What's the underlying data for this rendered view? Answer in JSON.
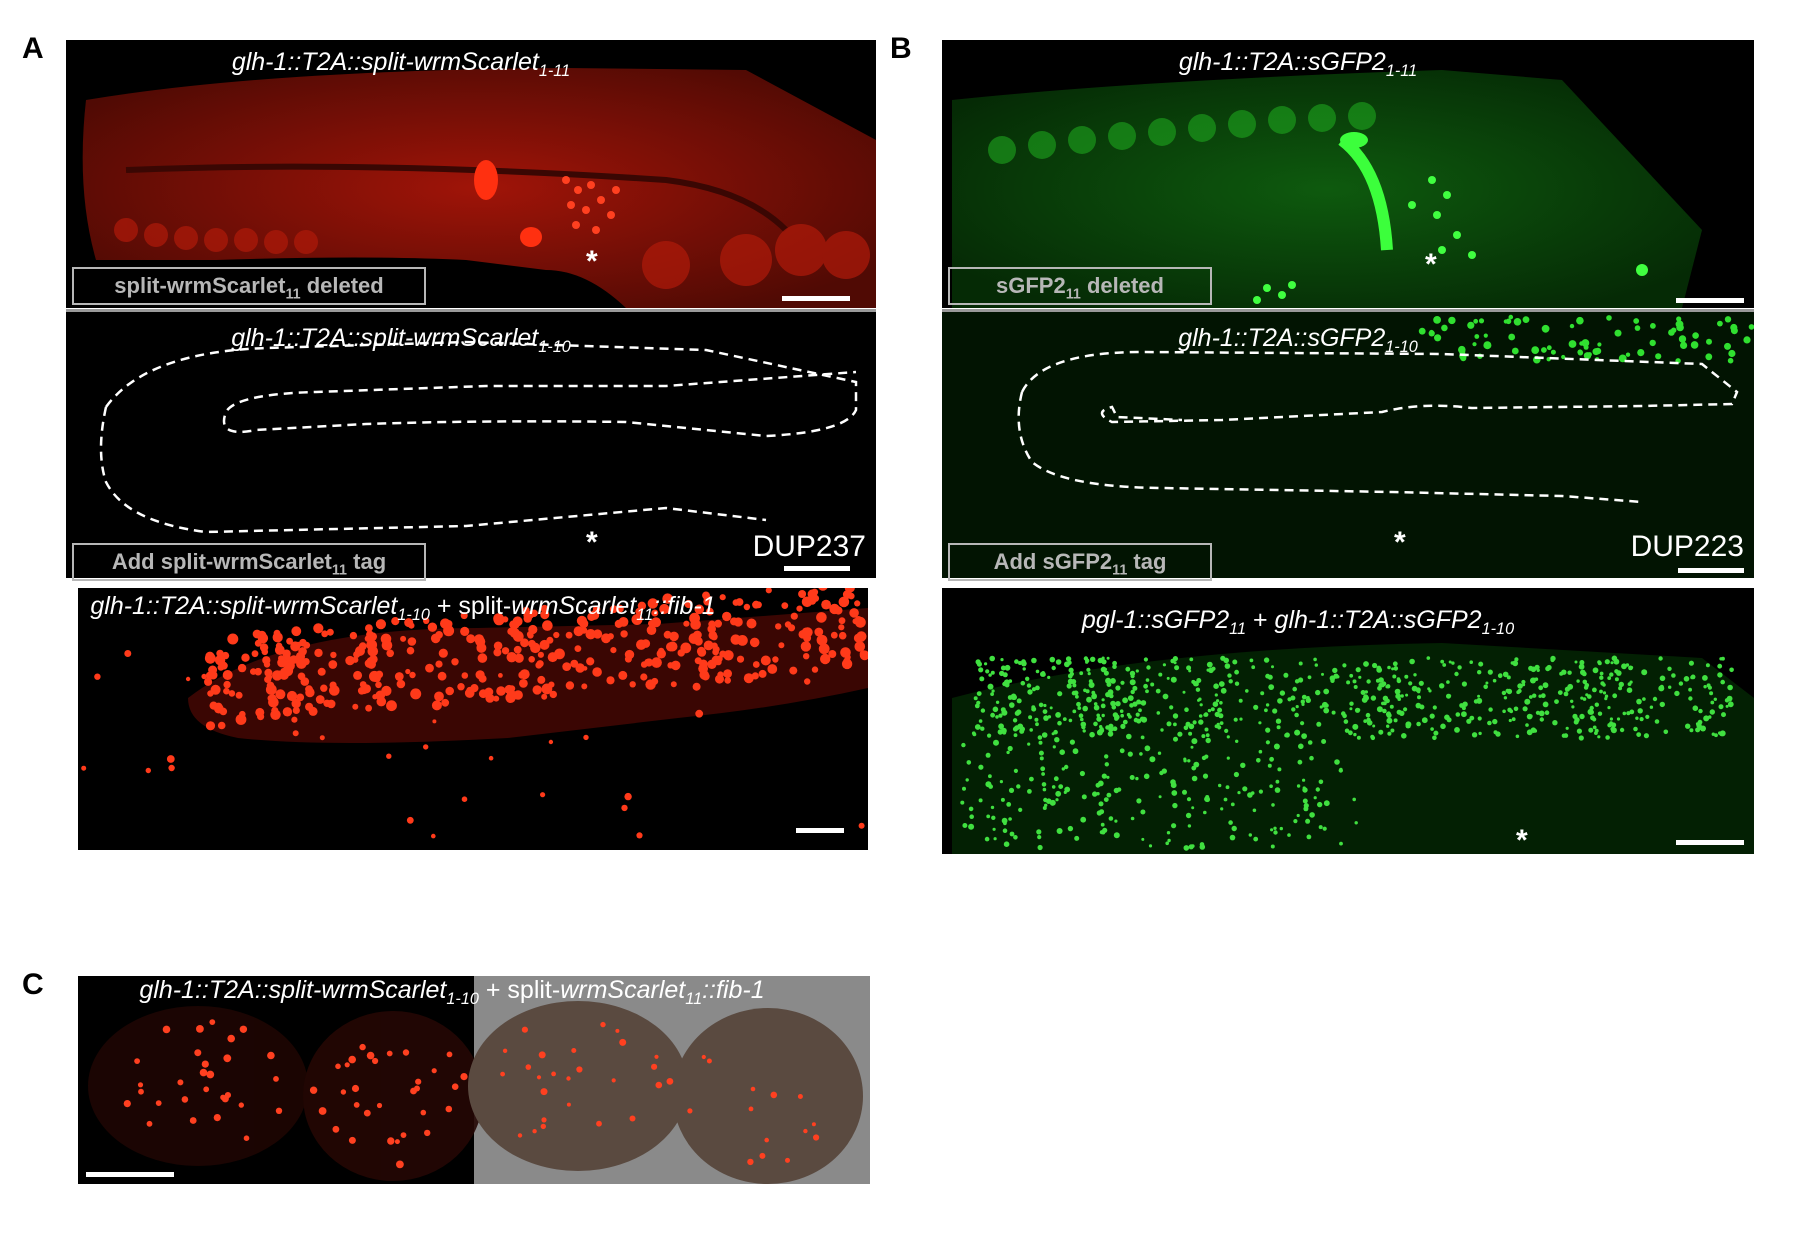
{
  "panel_a": {
    "letter": "A",
    "top_title": "glh-1::T2A::split-wrmScarlet",
    "top_title_sub": "1-11",
    "step1_label": "split-wrmScarlet",
    "step1_sub": "11",
    "step1_suffix": " deleted",
    "middle_title": "glh-1::T2A::split-wrmScarlet",
    "middle_title_sub": "1-10",
    "dup_label": "DUP237",
    "step2_label": "Add split-wrmScarlet",
    "step2_sub": "11",
    "step2_suffix": " tag",
    "bottom_title_a": "glh-1::T2A::split-wrmScarlet",
    "bottom_title_a_sub": "1-10",
    "bottom_title_plus": " + ",
    "bottom_title_b_plain": "split-",
    "bottom_title_b_ital": "wrmScarlet",
    "bottom_title_b_sub": "11",
    "bottom_title_b_end": "::fib-1"
  },
  "panel_b": {
    "letter": "B",
    "top_title": "glh-1::T2A::sGFP2",
    "top_title_sub": "1-11",
    "step1_label": "sGFP2",
    "step1_sub": "11",
    "step1_suffix": " deleted",
    "middle_title": "glh-1::T2A::sGFP2",
    "middle_title_sub": "1-10",
    "dup_label": "DUP223",
    "step2_label": "Add sGFP2",
    "step2_sub": "11",
    "step2_suffix": " tag",
    "bottom_title_a": "pgl-1::sGFP2",
    "bottom_title_a_sub": "11",
    "bottom_title_plus": " + ",
    "bottom_title_b": "glh-1::T2A::sGFP2",
    "bottom_title_b_sub": "1-10"
  },
  "panel_c": {
    "letter": "C",
    "title_a": "glh-1::T2A::split-wrmScarlet",
    "title_a_sub": "1-10",
    "title_plus": " + ",
    "title_b_plain": "split-",
    "title_b_ital": "wrmScarlet",
    "title_b_sub": "11",
    "title_b_end": "::fib-1"
  },
  "asterisk": "*",
  "colors": {
    "red": "#e02010",
    "green": "#20c020",
    "background": "#000000"
  }
}
